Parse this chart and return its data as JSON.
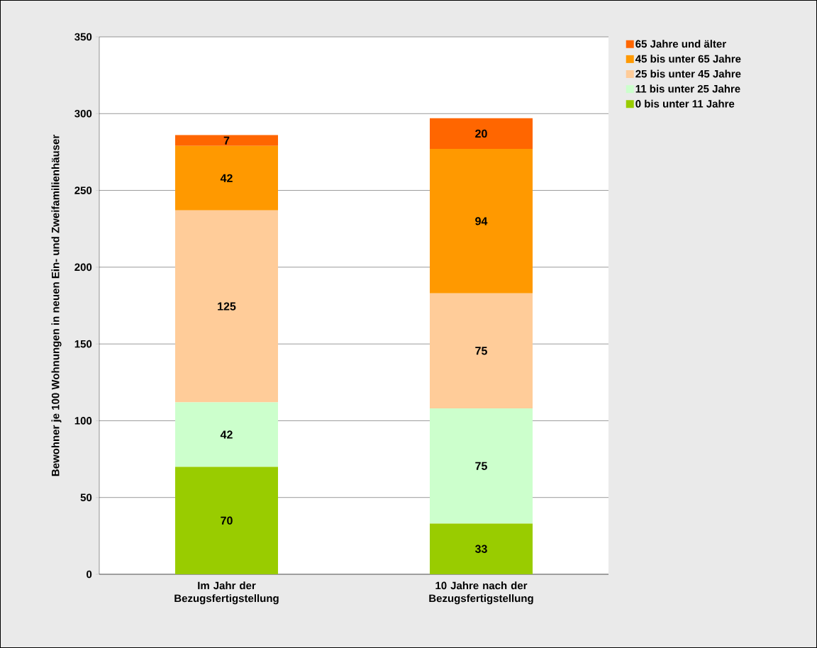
{
  "chart_data": {
    "type": "bar",
    "stacked": true,
    "ylabel": "Bewohner je 100 Wohnungen in neuen Ein- und Zweifamilienhäuser",
    "categories": [
      "Im Jahr der Bezugsfertigstellung",
      "10 Jahre nach der Bezugsfertigstellung"
    ],
    "series": [
      {
        "name": "0 bis unter 11 Jahre",
        "color": "#99cc00",
        "values": [
          70,
          33
        ]
      },
      {
        "name": "11 bis unter 25 Jahre",
        "color": "#ccffcc",
        "values": [
          42,
          75
        ]
      },
      {
        "name": "25 bis unter 45 Jahre",
        "color": "#ffcc99",
        "values": [
          125,
          75
        ]
      },
      {
        "name": "45 bis unter 65 Jahre",
        "color": "#ff9900",
        "values": [
          42,
          94
        ]
      },
      {
        "name": "65 Jahre und älter",
        "color": "#ff6600",
        "values": [
          7,
          20
        ]
      }
    ],
    "ylim": [
      0,
      350
    ],
    "yticks": [
      0,
      50,
      100,
      150,
      200,
      250,
      300,
      350
    ],
    "grid": "y",
    "legend": "top right",
    "data_labels": true
  }
}
